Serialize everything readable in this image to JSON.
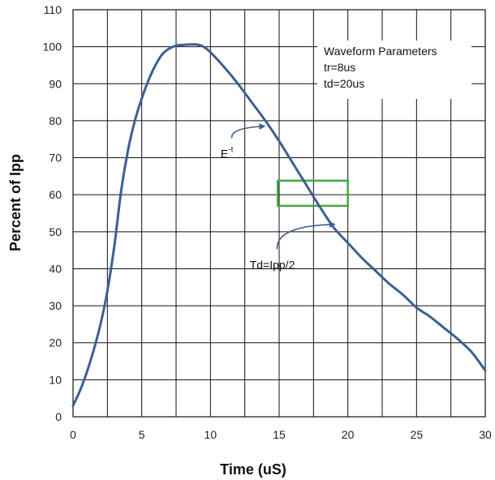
{
  "chart_data": {
    "type": "line",
    "xlabel": "Time (uS)",
    "ylabel": "Percent of Ipp",
    "xlim": [
      0,
      30
    ],
    "ylim": [
      0,
      110
    ],
    "x_ticks": [
      "0",
      "5",
      "10",
      "15",
      "20",
      "25",
      "30"
    ],
    "y_ticks": [
      "0",
      "10",
      "20",
      "30",
      "40",
      "50",
      "60",
      "70",
      "80",
      "90",
      "100",
      "110"
    ],
    "grid": true,
    "series": [
      {
        "color": "#3c6090",
        "x": [
          0,
          0.5,
          1,
          1.5,
          2,
          2.5,
          3,
          3.5,
          4,
          4.5,
          5,
          5.5,
          6,
          6.5,
          7,
          7.5,
          8,
          8.5,
          9,
          9.5,
          10,
          11,
          12,
          13,
          14,
          15,
          16,
          17,
          18,
          19,
          20,
          21,
          22,
          23,
          24,
          25,
          26,
          27,
          28,
          29,
          30
        ],
        "y": [
          3,
          7,
          12,
          18,
          25,
          34,
          46,
          61,
          72,
          80,
          86,
          91,
          95,
          98,
          99.5,
          100.3,
          100.5,
          100.6,
          100.6,
          100,
          98.5,
          94.5,
          90,
          85,
          80,
          74.5,
          68.5,
          62.5,
          56.5,
          51,
          47,
          43,
          39.5,
          36,
          33,
          29.5,
          27,
          24,
          21,
          17.5,
          12.5
        ]
      }
    ],
    "legend_box": {
      "title": "Waveform Parameters",
      "lines": [
        "tr=8us",
        "td=20us"
      ]
    },
    "annotations": [
      {
        "text": "E",
        "superscript": "-t",
        "x": 11.2,
        "y": 70,
        "arrow_to": [
          13.9,
          78.5
        ]
      },
      {
        "text": "Td=Ipp/2",
        "x": 14.5,
        "y": 40,
        "arrow_to": [
          19,
          52
        ]
      }
    ],
    "highlight_rect": {
      "x": [
        14.9,
        20
      ],
      "y": [
        57,
        63.8
      ],
      "color": "#44a844"
    }
  }
}
